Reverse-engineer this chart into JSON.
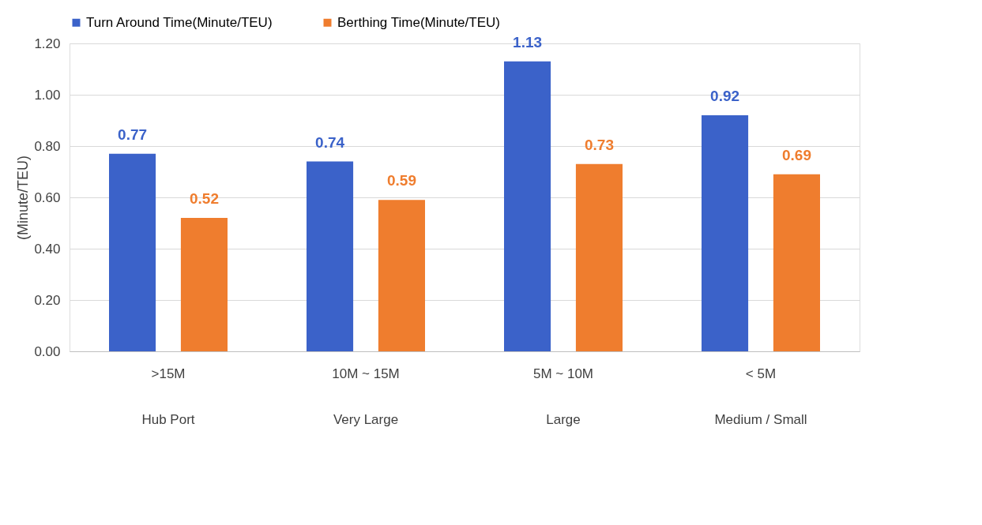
{
  "chart_data": {
    "type": "bar",
    "ylabel": "(Minute/TEU)",
    "categories": [
      ">15M\nHub Port",
      "10M ~ 15M\nVery Large",
      "5M ~ 10M\nLarge",
      "< 5M\nMedium / Small"
    ],
    "series": [
      {
        "name": "Turn Around Time(Minute/TEU)",
        "color": "#3b62c9",
        "values": [
          0.77,
          0.74,
          1.13,
          0.92
        ]
      },
      {
        "name": "Berthing Time(Minute/TEU)",
        "color": "#ef7d2e",
        "values": [
          0.52,
          0.59,
          0.73,
          0.69
        ]
      }
    ],
    "ylim": [
      0,
      1.2
    ],
    "yticks": [
      {
        "value": 0,
        "label": "0.00"
      },
      {
        "value": 0.2,
        "label": "0.20"
      },
      {
        "value": 0.4,
        "label": "0.40"
      },
      {
        "value": 0.6,
        "label": "0.60"
      },
      {
        "value": 0.8,
        "label": "0.80"
      },
      {
        "value": 1.0,
        "label": "1.00"
      },
      {
        "value": 1.2,
        "label": "1.20"
      }
    ],
    "grid": "y",
    "legend": "top",
    "data_labels": true
  }
}
